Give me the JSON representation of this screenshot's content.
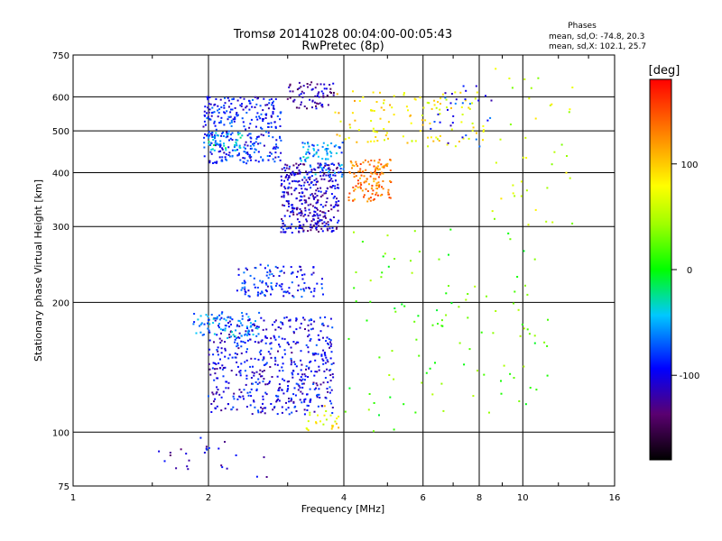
{
  "chart_data": {
    "type": "scatter",
    "title": "Tromsø 20141028 00:04:00-00:05:43",
    "subtitle": "RwPretec (8p)",
    "xlabel": "Frequency [MHz]",
    "ylabel": "Stationary phase Virtual Height [km]",
    "x_scale": "log",
    "y_scale": "log",
    "xlim": [
      1,
      16
    ],
    "ylim": [
      75,
      750
    ],
    "x_ticks": [
      1,
      2,
      4,
      6,
      8,
      10,
      16
    ],
    "x_tick_labels": [
      "1",
      "2",
      "4",
      "6",
      "8",
      "10",
      "16"
    ],
    "y_ticks": [
      75,
      100,
      200,
      300,
      400,
      500,
      600,
      750
    ],
    "y_tick_labels": [
      "75",
      "100",
      "200",
      "300",
      "400",
      "500",
      "600",
      "750"
    ],
    "grid": true,
    "phase_stats": {
      "heading": "Phases",
      "line_o": "mean, sd,O: -74.8, 20.3",
      "line_x": "mean, sd,X: 102.1, 25.7"
    },
    "colorbar": {
      "label": "[deg]",
      "range": [
        -180,
        180
      ],
      "tick_values": [
        100,
        0,
        -100
      ],
      "tick_labels": [
        "100",
        "0",
        "-100"
      ]
    },
    "clusters": [
      {
        "f": [
          1.95,
          2.9
        ],
        "h": [
          420,
          600
        ],
        "phase": -90,
        "n": 320
      },
      {
        "f": [
          2.0,
          2.4
        ],
        "h": [
          450,
          500
        ],
        "phase": -40,
        "n": 40
      },
      {
        "f": [
          2.9,
          3.9
        ],
        "h": [
          290,
          420
        ],
        "phase": -110,
        "n": 360
      },
      {
        "f": [
          3.2,
          4.0
        ],
        "h": [
          390,
          470
        ],
        "phase": -60,
        "n": 80
      },
      {
        "f": [
          3.0,
          3.8
        ],
        "h": [
          560,
          650
        ],
        "phase": -120,
        "n": 70
      },
      {
        "f": [
          4.1,
          5.1
        ],
        "h": [
          340,
          430
        ],
        "phase": 130,
        "n": 130
      },
      {
        "f": [
          3.8,
          5.2
        ],
        "h": [
          470,
          620
        ],
        "phase": 90,
        "n": 50
      },
      {
        "f": [
          5.4,
          8.2
        ],
        "h": [
          460,
          620
        ],
        "phase": 80,
        "n": 70
      },
      {
        "f": [
          6.2,
          8.6
        ],
        "h": [
          460,
          640
        ],
        "phase": -90,
        "n": 30
      },
      {
        "f": [
          2.0,
          3.8
        ],
        "h": [
          110,
          185
        ],
        "phase": -100,
        "n": 520
      },
      {
        "f": [
          1.85,
          2.6
        ],
        "h": [
          165,
          190
        ],
        "phase": -60,
        "n": 80
      },
      {
        "f": [
          2.3,
          3.6
        ],
        "h": [
          205,
          245
        ],
        "phase": -90,
        "n": 120
      },
      {
        "f": [
          3.3,
          3.9
        ],
        "h": [
          100,
          115
        ],
        "phase": 80,
        "n": 25
      },
      {
        "f": [
          1.55,
          2.7
        ],
        "h": [
          78,
          98
        ],
        "phase": -110,
        "n": 25
      },
      {
        "f": [
          4.0,
          11.5
        ],
        "h": [
          100,
          300
        ],
        "phase": 20,
        "n": 110
      },
      {
        "f": [
          8.5,
          13.0
        ],
        "h": [
          300,
          700
        ],
        "phase": 60,
        "n": 40
      }
    ]
  }
}
